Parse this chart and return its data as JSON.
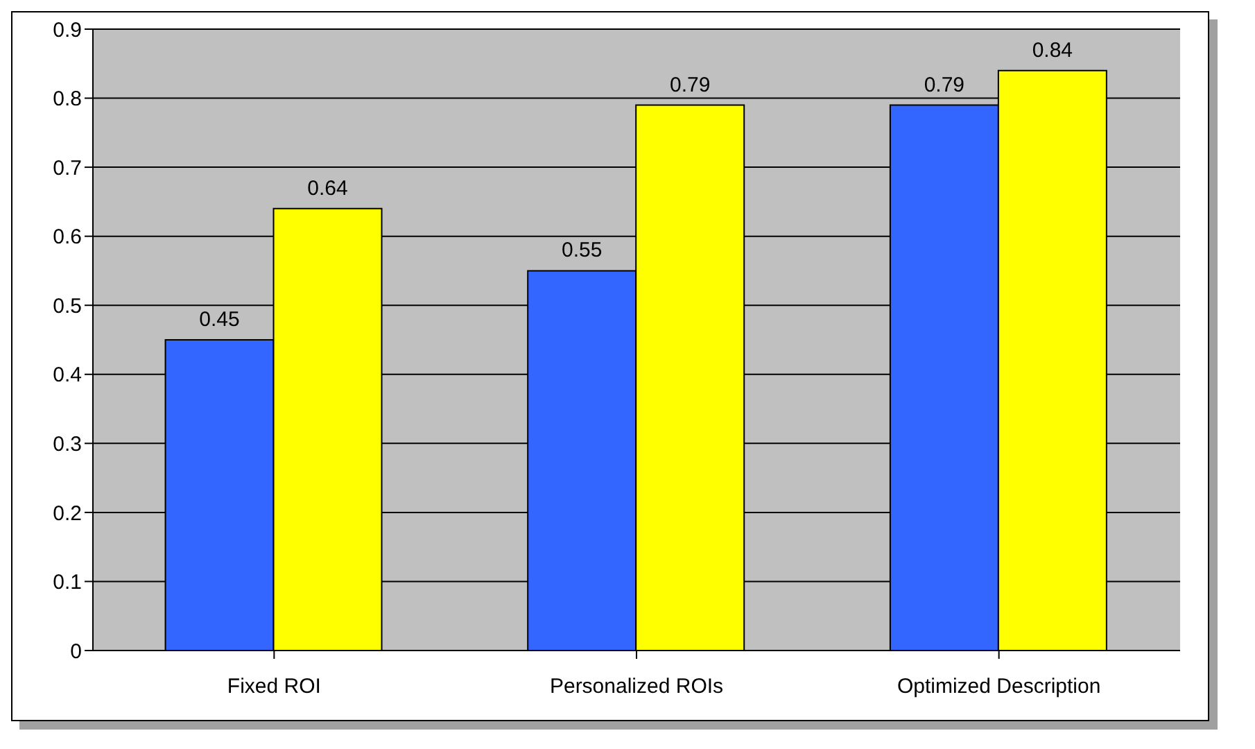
{
  "chart_data": {
    "type": "bar",
    "categories": [
      "Fixed ROI",
      "Personalized ROIs",
      "Optimized Description"
    ],
    "series": [
      {
        "color": "#3366ff",
        "values": [
          0.45,
          0.55,
          0.79
        ]
      },
      {
        "color": "#ffff00",
        "values": [
          0.64,
          0.79,
          0.84
        ]
      }
    ],
    "ylim": [
      0,
      0.9
    ],
    "yticks": [
      0,
      0.1,
      0.2,
      0.3,
      0.4,
      0.5,
      0.6,
      0.7,
      0.8,
      0.9
    ],
    "grid": "y",
    "data_labels": true,
    "legend": false
  }
}
